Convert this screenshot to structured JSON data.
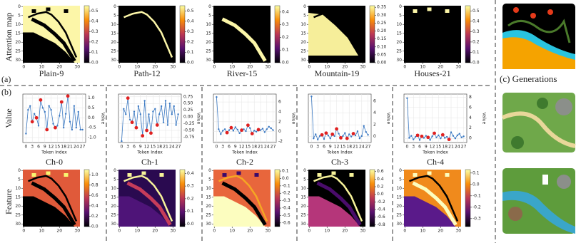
{
  "labels": {
    "a": "(a)",
    "b": "(b)",
    "c": "(c)  Generations",
    "attention": "Attention map",
    "value": "Value",
    "feature": "Feature"
  },
  "chart_data": [
    {
      "type": "heatmap",
      "title": "Plain-9",
      "xticks": [
        0,
        10,
        20,
        30
      ],
      "yticks": [
        0,
        5,
        10,
        15,
        20,
        25,
        30
      ],
      "xlim": [
        0,
        32
      ],
      "ylim": [
        0,
        32
      ],
      "clim": [
        0,
        0.55
      ],
      "cticks": [
        {
          "value": 0,
          "label": "0.0"
        },
        0.1,
        0.2,
        0.3,
        0.4,
        0.5
      ]
    },
    {
      "type": "heatmap",
      "title": "Path-12",
      "xticks": [
        0,
        10,
        20,
        30
      ],
      "yticks": [
        0,
        5,
        10,
        15,
        20,
        25,
        30
      ],
      "xlim": [
        0,
        32
      ],
      "ylim": [
        0,
        32
      ],
      "clim": [
        0,
        0.55
      ],
      "cticks": [
        {
          "value": 0,
          "label": "0.0"
        },
        0.1,
        0.2,
        0.3,
        0.4,
        0.5
      ]
    },
    {
      "type": "heatmap",
      "title": "River-15",
      "xticks": [
        0,
        10,
        20,
        30
      ],
      "yticks": [
        0,
        5,
        10,
        15,
        20,
        25,
        30
      ],
      "xlim": [
        0,
        32
      ],
      "ylim": [
        0,
        32
      ],
      "clim": [
        0,
        0.45
      ],
      "cticks": [
        {
          "value": 0,
          "label": "0.0"
        },
        0.1,
        0.2,
        0.3,
        0.4
      ]
    },
    {
      "type": "heatmap",
      "title": "Mountain-19",
      "xticks": [
        0,
        10,
        20,
        30
      ],
      "yticks": [
        0,
        5,
        10,
        15,
        20,
        25,
        30
      ],
      "xlim": [
        0,
        32
      ],
      "ylim": [
        0,
        32
      ],
      "clim": [
        0,
        0.36
      ],
      "cticks": [
        {
          "value": 0,
          "label": "0.00"
        },
        0.05,
        {
          "value": 0.1,
          "label": "0.10"
        },
        0.15,
        {
          "value": 0.2,
          "label": "0.20"
        },
        0.25,
        {
          "value": 0.3,
          "label": "0.30"
        },
        0.35
      ]
    },
    {
      "type": "heatmap",
      "title": "Houses-21",
      "xticks": [
        0,
        10,
        20,
        30
      ],
      "yticks": [
        0,
        5,
        10,
        15,
        20,
        25,
        30
      ],
      "xlim": [
        0,
        32
      ],
      "ylim": [
        0,
        32
      ],
      "clim": [
        0,
        0.55
      ],
      "cticks": [
        {
          "value": 0,
          "label": "0.0"
        },
        0.1,
        0.2,
        0.3,
        0.4,
        0.5
      ]
    },
    {
      "type": "line",
      "title": "Ch-0",
      "xlabel": "Token Index",
      "ylabel": "Value",
      "xticks": [
        0,
        3,
        6,
        9,
        12,
        15,
        18,
        21,
        24,
        27
      ],
      "xlim": [
        -1.5,
        28.5
      ],
      "ylim": [
        -1.25,
        1.2
      ],
      "yticks": [
        {
          "value": 1,
          "label": "1.0"
        },
        0.5,
        {
          "value": 0,
          "label": "0.0"
        },
        -0.5,
        {
          "value": -1,
          "label": "-1.0"
        }
      ],
      "color": "#3a78c2",
      "highlight_color": "#e02020",
      "highlight": [
        3,
        5,
        7,
        10,
        14,
        17,
        20
      ],
      "values": [
        -0.8,
        0.4,
        0.6,
        -0.2,
        0.2,
        0,
        -0.4,
        0.9,
        0.5,
        0.3,
        -0.6,
        0.6,
        0.4,
        -0.3,
        -0.5,
        -0.4,
        0.1,
        0.8,
        -0.5,
        0.2,
        1.1,
        -0.2,
        -0.6,
        0.6,
        -0.5,
        0.3,
        -0.6,
        -0.6
      ]
    },
    {
      "type": "line",
      "title": "Ch-1",
      "xlabel": "Token Index",
      "ylabel": "Value",
      "xticks": [
        0,
        3,
        6,
        9,
        12,
        15,
        18,
        21,
        24,
        27
      ],
      "xlim": [
        -1.5,
        28.5
      ],
      "ylim": [
        -0.95,
        0.85
      ],
      "yticks": [
        0.75,
        {
          "value": 0.5,
          "label": "0.50"
        },
        0.25,
        {
          "value": 0,
          "label": "0.00"
        },
        -0.25,
        {
          "value": -0.5,
          "label": "-0.50"
        },
        -0.75
      ],
      "color": "#3a78c2",
      "highlight_color": "#e02020",
      "highlight": [
        3,
        5,
        7,
        10,
        12,
        14,
        17
      ],
      "values": [
        -0.9,
        0.3,
        0.1,
        0.7,
        -0.1,
        -0.2,
        0.2,
        -0.4,
        0.4,
        0.1,
        -0.7,
        0.6,
        -0.5,
        0.1,
        -0.6,
        0.2,
        0.3,
        -0.3,
        0.1,
        0.4,
        -0.2,
        0.6,
        -0.3,
        0.5,
        0.1,
        0.4,
        -0.3,
        0.1
      ]
    },
    {
      "type": "line",
      "title": "Ch-2",
      "xlabel": "Token Index",
      "ylabel": "Value",
      "xticks": [
        0,
        3,
        6,
        9,
        12,
        15,
        18,
        21,
        24,
        27
      ],
      "xlim": [
        -1.5,
        28.5
      ],
      "ylim": [
        -2.2,
        7.6
      ],
      "yticks": [
        -2,
        0,
        2,
        4,
        6
      ],
      "color": "#3a78c2",
      "highlight_color": "#e02020",
      "highlight": [
        5,
        7,
        12,
        15,
        17,
        20
      ],
      "values": [
        7,
        0.5,
        -0.5,
        0.2,
        0.5,
        -0.2,
        0.3,
        0.8,
        0.2,
        0.9,
        0.4,
        -0.3,
        0.3,
        0.5,
        0.1,
        1.3,
        0.7,
        -0.4,
        0.2,
        0,
        0.4,
        0.3,
        0.6,
        -0.1,
        0.5,
        1,
        0.7,
        0.3
      ]
    },
    {
      "type": "line",
      "title": "Ch-3",
      "xlabel": "Token Index",
      "ylabel": "Value",
      "xticks": [
        0,
        3,
        6,
        9,
        12,
        15,
        18,
        21,
        24,
        27
      ],
      "xlim": [
        -1.5,
        28.5
      ],
      "ylim": [
        -1,
        7.2
      ],
      "yticks": [
        0,
        2,
        4,
        6
      ],
      "color": "#3a78c2",
      "highlight_color": "#e02020",
      "highlight": [
        5,
        7,
        10,
        12,
        14,
        17,
        20
      ],
      "values": [
        6.8,
        -0.3,
        0.4,
        -0.5,
        0.1,
        0.3,
        -0.4,
        0.6,
        0.2,
        -0.3,
        0.4,
        0.1,
        1.3,
        0.5,
        -0.2,
        0.1,
        0.6,
        -0.3,
        0.4,
        0,
        0.5,
        0.2,
        0.9,
        -0.3,
        0.1,
        1.8,
        0.8,
        0.3
      ]
    },
    {
      "type": "line",
      "title": "Ch-4",
      "xlabel": "Token Index",
      "ylabel": "Value",
      "xticks": [
        0,
        3,
        6,
        9,
        12,
        15,
        18,
        21,
        24,
        27
      ],
      "xlim": [
        -1.5,
        28.5
      ],
      "ylim": [
        -0.8,
        8.6
      ],
      "yticks": [
        0,
        2,
        4,
        6,
        8
      ],
      "color": "#3a78c2",
      "highlight_color": "#e02020",
      "highlight": [
        5,
        7,
        10,
        13,
        17,
        20
      ],
      "values": [
        7.8,
        0.1,
        0.5,
        -0.2,
        0.3,
        0.6,
        -0.3,
        0.4,
        0.1,
        0.5,
        0.2,
        -0.3,
        0.4,
        1,
        0.2,
        0.6,
        0,
        0.7,
        0.1,
        0.3,
        -0.2,
        1.2,
        0.5,
        0,
        0.6,
        0.9,
        0.2,
        0.4
      ]
    },
    {
      "type": "heatmap",
      "xticks": [
        0,
        10,
        20,
        30
      ],
      "yticks": [
        0,
        5,
        10,
        15,
        20,
        25,
        30
      ],
      "xlim": [
        0,
        32
      ],
      "ylim": [
        0,
        32
      ],
      "clim": [
        0,
        1.1
      ],
      "cticks": [
        {
          "value": 0,
          "label": "0.0"
        },
        0.2,
        0.4,
        0.6,
        0.8,
        {
          "value": 1,
          "label": "1.0"
        }
      ]
    },
    {
      "type": "heatmap",
      "xticks": [
        0,
        10,
        20,
        30
      ],
      "yticks": [
        0,
        5,
        10,
        15,
        20,
        25,
        30
      ],
      "xlim": [
        0,
        32
      ],
      "ylim": [
        0,
        32
      ],
      "clim": [
        -0.02,
        0.43
      ],
      "cticks": [
        {
          "value": 0,
          "label": "0.0"
        },
        0.1,
        0.2,
        0.3,
        0.4
      ]
    },
    {
      "type": "heatmap",
      "xticks": [
        0,
        10,
        20,
        30
      ],
      "yticks": [
        0,
        5,
        10,
        15,
        20,
        25,
        30
      ],
      "xlim": [
        0,
        32
      ],
      "ylim": [
        0,
        32
      ],
      "clim": [
        -0.65,
        0.12
      ],
      "cticks": [
        0.1,
        {
          "value": 0,
          "label": "0.0"
        },
        -0.1,
        -0.2,
        -0.3,
        -0.4,
        -0.5,
        -0.6
      ]
    },
    {
      "type": "heatmap",
      "xticks": [
        0,
        10,
        20,
        30
      ],
      "yticks": [
        0,
        5,
        10,
        15,
        20,
        25,
        30
      ],
      "xlim": [
        0,
        32
      ],
      "ylim": [
        0,
        32
      ],
      "clim": [
        -0.85,
        0.65
      ],
      "cticks": [
        0.6,
        0.4,
        0.2,
        {
          "value": 0,
          "label": "0.0"
        },
        -0.2,
        -0.4,
        -0.6,
        -0.8
      ]
    },
    {
      "type": "heatmap",
      "xticks": [
        0,
        10,
        20,
        30
      ],
      "yticks": [
        0,
        5,
        10,
        15,
        20,
        25,
        30
      ],
      "xlim": [
        0,
        32
      ],
      "ylim": [
        0,
        32
      ],
      "clim": [
        -0.37,
        0.13
      ],
      "cticks": [
        0.1,
        {
          "value": 0,
          "label": "0.0"
        },
        -0.1,
        -0.2,
        -0.3
      ]
    }
  ]
}
